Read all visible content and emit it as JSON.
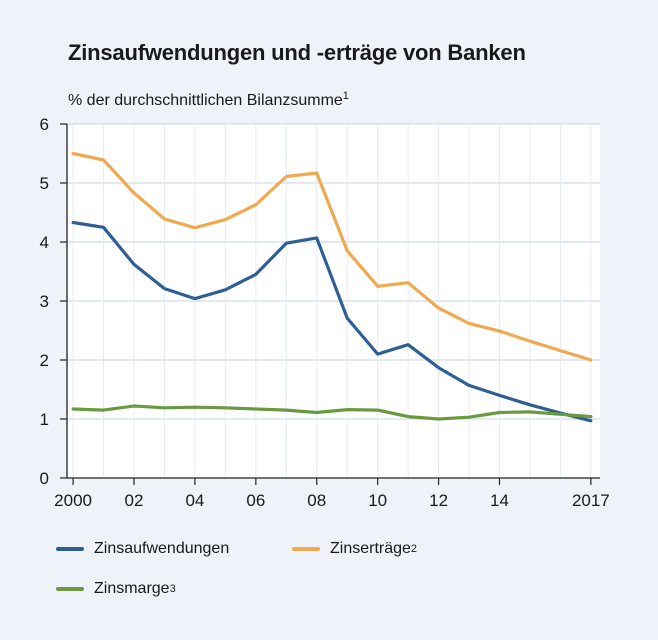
{
  "chart_data": {
    "type": "line",
    "title": "Zinsaufwendungen und -erträge von Banken",
    "subtitle": "% der durchschnittlichen Bilanzsumme",
    "subtitle_footnote": "1",
    "x": [
      2000,
      2001,
      2002,
      2003,
      2004,
      2005,
      2006,
      2007,
      2008,
      2009,
      2010,
      2011,
      2012,
      2013,
      2014,
      2015,
      2016,
      2017
    ],
    "x_tick_values": [
      2000,
      2002,
      2004,
      2006,
      2008,
      2010,
      2012,
      2014,
      2017
    ],
    "x_tick_labels": [
      "2000",
      "02",
      "04",
      "06",
      "08",
      "10",
      "12",
      "14",
      "2017"
    ],
    "ylim": [
      0,
      6
    ],
    "y_ticks": [
      0,
      1,
      2,
      3,
      4,
      5,
      6
    ],
    "xlim": [
      1999.8,
      2017.3
    ],
    "grid": true,
    "series": [
      {
        "name": "Zinsaufwendungen",
        "footnote": "",
        "color": "#2e5f93",
        "values": [
          4.33,
          4.25,
          3.62,
          3.21,
          3.04,
          3.19,
          3.45,
          3.98,
          4.07,
          2.71,
          2.1,
          2.26,
          1.87,
          1.57,
          1.4,
          1.24,
          1.1,
          0.97
        ]
      },
      {
        "name": "Zinserträge",
        "footnote": "2",
        "color": "#f0a94f",
        "values": [
          5.5,
          5.39,
          4.83,
          4.39,
          4.24,
          4.38,
          4.63,
          5.11,
          5.17,
          3.85,
          3.25,
          3.31,
          2.88,
          2.62,
          2.49,
          2.32,
          2.16,
          2.0
        ]
      },
      {
        "name": "Zinsmarge",
        "footnote": "3",
        "color": "#6a9a3e",
        "values": [
          1.17,
          1.15,
          1.22,
          1.19,
          1.2,
          1.19,
          1.17,
          1.15,
          1.11,
          1.16,
          1.15,
          1.04,
          1.0,
          1.03,
          1.11,
          1.12,
          1.08,
          1.04
        ]
      }
    ]
  }
}
